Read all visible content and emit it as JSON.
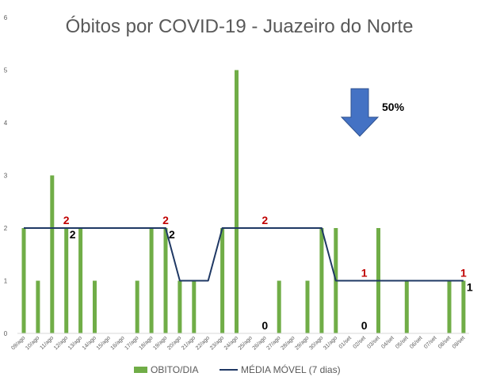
{
  "chart_data": {
    "type": "bar",
    "title": "Óbitos por COVID-19 - Juazeiro do Norte",
    "xlabel": "",
    "ylabel": "",
    "ylim": [
      0,
      6
    ],
    "yticks": [
      "0",
      "1",
      "2",
      "3",
      "4",
      "5",
      "6"
    ],
    "grid": false,
    "legend_position": "bottom",
    "categories": [
      "09/ago",
      "10/ago",
      "11/ago",
      "12/ago",
      "13/ago",
      "14/ago",
      "15/ago",
      "16/ago",
      "17/ago",
      "18/ago",
      "19/ago",
      "20/ago",
      "21/ago",
      "22/ago",
      "23/ago",
      "24/ago",
      "25/ago",
      "26/ago",
      "27/ago",
      "28/ago",
      "29/ago",
      "30/ago",
      "31/ago",
      "01/set",
      "02/set",
      "03/set",
      "04/set",
      "05/set",
      "06/set",
      "07/set",
      "08/set",
      "09/set"
    ],
    "series": [
      {
        "name": "OBITO/DIA",
        "type": "bar",
        "color": "#70ad47",
        "values": [
          2,
          1,
          3,
          2,
          2,
          1,
          0,
          0,
          1,
          2,
          2,
          1,
          1,
          0,
          2,
          5,
          0,
          0,
          1,
          0,
          1,
          2,
          2,
          0,
          0,
          2,
          0,
          1,
          0,
          0,
          1,
          1
        ]
      },
      {
        "name": "MÉDIA MÓVEL (7 dias)",
        "type": "line",
        "color": "#1f3864",
        "values": [
          2,
          2,
          2,
          2,
          2,
          2,
          2,
          2,
          2,
          2,
          2,
          1,
          1,
          1,
          2,
          2,
          2,
          2,
          2,
          2,
          2,
          2,
          1,
          1,
          1,
          1,
          1,
          1,
          1,
          1,
          1,
          1
        ]
      }
    ],
    "annotations": [
      {
        "text": "2",
        "x": "12/ago",
        "y": 2,
        "color": "#c00000",
        "position": "above"
      },
      {
        "text": "2",
        "x": "12/ago",
        "y": 2,
        "color": "#000000",
        "position": "below-right"
      },
      {
        "text": "2",
        "x": "19/ago",
        "y": 2,
        "color": "#c00000",
        "position": "above"
      },
      {
        "text": "2",
        "x": "19/ago",
        "y": 2,
        "color": "#000000",
        "position": "below-right"
      },
      {
        "text": "2",
        "x": "26/ago",
        "y": 2,
        "color": "#c00000",
        "position": "above"
      },
      {
        "text": "0",
        "x": "26/ago",
        "y": 0,
        "color": "#000000",
        "position": "above"
      },
      {
        "text": "1",
        "x": "02/set",
        "y": 1,
        "color": "#c00000",
        "position": "above"
      },
      {
        "text": "0",
        "x": "02/set",
        "y": 0,
        "color": "#000000",
        "position": "above"
      },
      {
        "text": "1",
        "x": "09/set",
        "y": 1,
        "color": "#c00000",
        "position": "above"
      },
      {
        "text": "1",
        "x": "09/set",
        "y": 1,
        "color": "#000000",
        "position": "below-right"
      }
    ],
    "arrow_note": {
      "text": "50%",
      "direction": "down",
      "color": "#4472c4"
    }
  }
}
